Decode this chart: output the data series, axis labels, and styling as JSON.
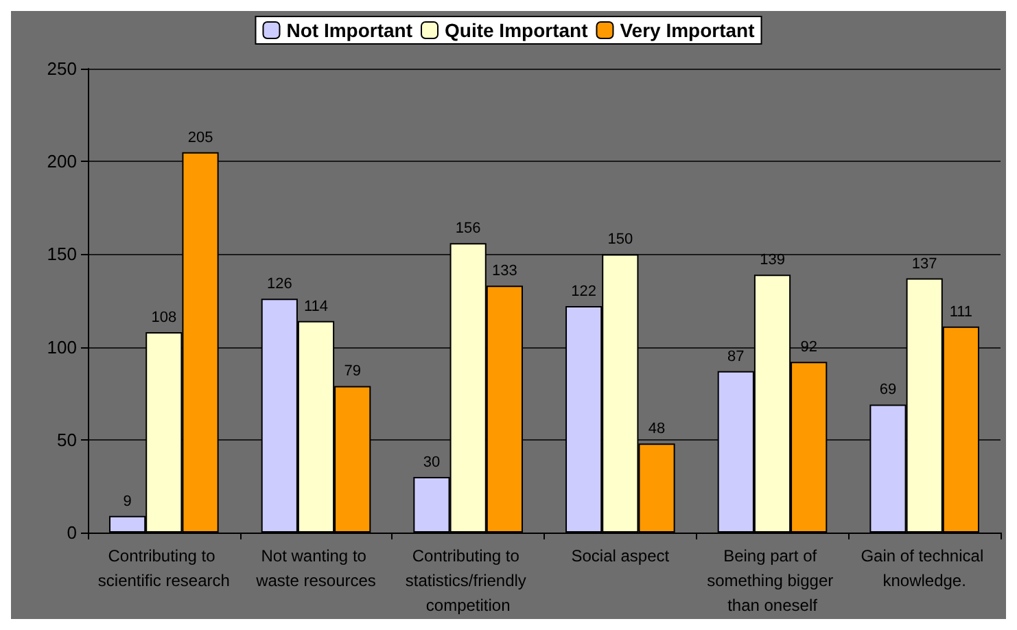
{
  "chart_data": {
    "type": "bar",
    "categories": [
      "Contributing to scientific research",
      "Not wanting to waste resources",
      "Contributing to statistics/friendly competition",
      "Social aspect",
      "Being part of something bigger than oneself",
      "Gain of technical knowledge."
    ],
    "series": [
      {
        "name": "Not Important",
        "color": "#ccccff",
        "values": [
          9,
          126,
          30,
          122,
          87,
          69
        ]
      },
      {
        "name": "Quite Important",
        "color": "#ffffcc",
        "values": [
          108,
          114,
          156,
          150,
          139,
          137
        ]
      },
      {
        "name": "Very Important",
        "color": "#ff9900",
        "values": [
          205,
          79,
          133,
          48,
          92,
          111
        ]
      }
    ],
    "data_labels": true,
    "ylim": [
      0,
      250
    ],
    "yticks": [
      0,
      50,
      100,
      150,
      200,
      250
    ],
    "grid": "y",
    "legend": "top"
  }
}
